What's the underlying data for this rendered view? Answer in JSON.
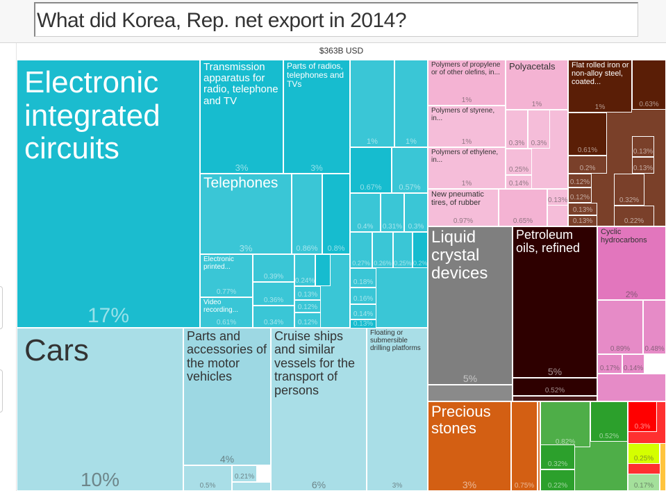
{
  "header": {
    "question": "What did Korea, Rep. net export in 2014?"
  },
  "chart_data": {
    "type": "treemap",
    "title": "What did Korea, Rep. net export in 2014?",
    "total": "$363B USD",
    "tiles": [
      {
        "name": "Electronic integrated circuits",
        "share": "17%",
        "color": "#1bbccf"
      },
      {
        "name": "Transmission apparatus for radio, telephone and TV",
        "share": "3%",
        "color": "#17bccf"
      },
      {
        "name": "Parts of radios, telephones and TVs",
        "share": "3%",
        "color": "#17bccf"
      },
      {
        "name": "",
        "share": "1%",
        "color": "#3ac6d6"
      },
      {
        "name": "",
        "share": "1%",
        "color": "#3ac6d6"
      },
      {
        "name": "",
        "share": "0.67%",
        "color": "#16bccf"
      },
      {
        "name": "",
        "share": "0.57%",
        "color": "#3ac6d6"
      },
      {
        "name": "",
        "share": "0.4%",
        "color": "#3ac6d6"
      },
      {
        "name": "",
        "share": "0.31%",
        "color": "#3ac6d6"
      },
      {
        "name": "",
        "share": "0.3%",
        "color": "#3ac6d6"
      },
      {
        "name": "",
        "share": "0.27%",
        "color": "#3ac6d6"
      },
      {
        "name": "",
        "share": "0.26%",
        "color": "#3ac6d6"
      },
      {
        "name": "",
        "share": "0.25%",
        "color": "#3ac6d6"
      },
      {
        "name": "",
        "share": "0.2%",
        "color": "#16bccf"
      },
      {
        "name": "",
        "share": "0.18%",
        "color": "#3ac6d6"
      },
      {
        "name": "",
        "share": "0.16%",
        "color": "#3ac6d6"
      },
      {
        "name": "",
        "share": "0.14%",
        "color": "#3ac6d6"
      },
      {
        "name": "",
        "share": "0.13%",
        "color": "#16bccf"
      },
      {
        "name": "Telephones",
        "share": "3%",
        "color": "#3ac6d6"
      },
      {
        "name": "",
        "share": "0.86%",
        "color": "#3ac6d6"
      },
      {
        "name": "",
        "share": "0.8%",
        "color": "#16bccf"
      },
      {
        "name": "Electronic printed...",
        "share": "0.77%",
        "color": "#3ac6d6"
      },
      {
        "name": "Video recording...",
        "share": "0.61%",
        "color": "#3ac6d6"
      },
      {
        "name": "",
        "share": "0.39%",
        "color": "#3ac6d6"
      },
      {
        "name": "",
        "share": "0.36%",
        "color": "#3ac6d6"
      },
      {
        "name": "",
        "share": "0.34%",
        "color": "#3ac6d6"
      },
      {
        "name": "",
        "share": "0.24%",
        "color": "#3ac6d6"
      },
      {
        "name": "",
        "share": "0.13%",
        "color": "#3ac6d6"
      },
      {
        "name": "",
        "share": "0.12%",
        "color": "#3ac6d6"
      },
      {
        "name": "",
        "share": "0.12%",
        "color": "#3ac6d6"
      },
      {
        "name": "Cars",
        "share": "10%",
        "color": "#a9dee7"
      },
      {
        "name": "Parts and accessories of the motor vehicles",
        "share": "4%",
        "color": "#9dd8e3"
      },
      {
        "name": "",
        "share": "0.5%",
        "color": "#a9dee7"
      },
      {
        "name": "",
        "share": "0.21%",
        "color": "#a9dee7"
      },
      {
        "name": "Cruise ships and similar vessels for the transport of persons",
        "share": "6%",
        "color": "#a9dee7"
      },
      {
        "name": "Floating or submersible drilling platforms",
        "share": "3%",
        "color": "#a9dee7"
      },
      {
        "name": "Polymers of propylene or of other olefins, in...",
        "share": "1%",
        "color": "#f4b3d3"
      },
      {
        "name": "Polyacetals",
        "share": "1%",
        "color": "#f4b3d3"
      },
      {
        "name": "Polymers of styrene, in...",
        "share": "1%",
        "color": "#f5bdd9"
      },
      {
        "name": "Polymers of ethylene, in...",
        "share": "1%",
        "color": "#f5bdd9"
      },
      {
        "name": "New pneumatic tires, of rubber",
        "share": "0.97%",
        "color": "#f5bdd9"
      },
      {
        "name": "",
        "share": "0.65%",
        "color": "#f4b3d3"
      },
      {
        "name": "",
        "share": "0.13%",
        "color": "#f5bdd9"
      },
      {
        "name": "",
        "share": "0.3%",
        "color": "#f5bdd9"
      },
      {
        "name": "",
        "share": "0.3%",
        "color": "#f5bdd9"
      },
      {
        "name": "",
        "share": "0.25%",
        "color": "#f5bdd9"
      },
      {
        "name": "",
        "share": "0.14%",
        "color": "#f5bdd9"
      },
      {
        "name": "Flat rolled iron or non-alloy steel, coated...",
        "share": "1%",
        "color": "#5a1e06"
      },
      {
        "name": "",
        "share": "0.63%",
        "color": "#5a1e06"
      },
      {
        "name": "",
        "share": "0.61%",
        "color": "#5a1e06"
      },
      {
        "name": "",
        "share": "0.2%",
        "color": "#7a402a"
      },
      {
        "name": "",
        "share": "0.12%",
        "color": "#7a402a"
      },
      {
        "name": "",
        "share": "0.12%",
        "color": "#7a402a"
      },
      {
        "name": "",
        "share": "0.13%",
        "color": "#7a402a"
      },
      {
        "name": "",
        "share": "0.13%",
        "color": "#7a402a"
      },
      {
        "name": "",
        "share": "0.32%",
        "color": "#7a402a"
      },
      {
        "name": "",
        "share": "0.22%",
        "color": "#7a402a"
      },
      {
        "name": "",
        "share": "0.13%",
        "color": "#7a402a"
      },
      {
        "name": "",
        "share": "0.13%",
        "color": "#7a402a"
      },
      {
        "name": "Liquid crystal devices",
        "share": "5%",
        "color": "#7f7f7f"
      },
      {
        "name": "Petroleum oils, refined",
        "share": "5%",
        "color": "#2e0000"
      },
      {
        "name": "",
        "share": "0.52%",
        "color": "#2e0000"
      },
      {
        "name": "Cyclic hydrocarbons",
        "share": "2%",
        "color": "#e276bd"
      },
      {
        "name": "",
        "share": "0.89%",
        "color": "#e68bc7"
      },
      {
        "name": "",
        "share": "0.48%",
        "color": "#e68bc7"
      },
      {
        "name": "",
        "share": "0.17%",
        "color": "#e68bc7"
      },
      {
        "name": "",
        "share": "0.14%",
        "color": "#e68bc7"
      },
      {
        "name": "Precious stones",
        "share": "3%",
        "color": "#d35f13"
      },
      {
        "name": "",
        "share": "0.75%",
        "color": "#d35f13"
      },
      {
        "name": "",
        "share": "0.82%",
        "color": "#4eae48"
      },
      {
        "name": "",
        "share": "0.52%",
        "color": "#2ca02c"
      },
      {
        "name": "",
        "share": "0.32%",
        "color": "#2ca02c"
      },
      {
        "name": "",
        "share": "0.22%",
        "color": "#2ca02c"
      },
      {
        "name": "",
        "share": "0.3%",
        "color": "#ff0000"
      },
      {
        "name": "",
        "share": "0.25%",
        "color": "#d4ff00"
      },
      {
        "name": "",
        "share": "0.17%",
        "color": "#a4e09b"
      }
    ]
  }
}
